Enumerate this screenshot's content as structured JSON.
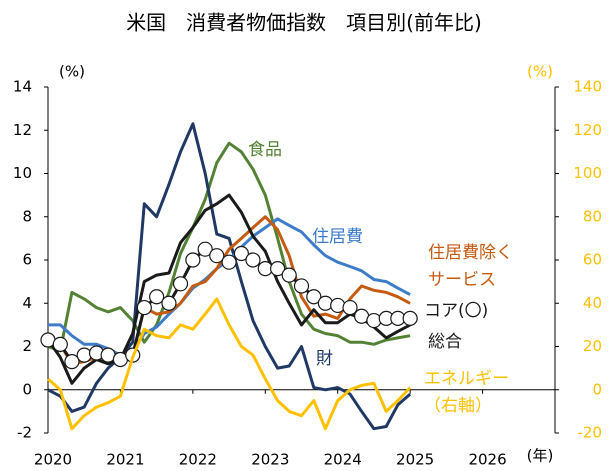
{
  "chart_data": {
    "type": "line",
    "title": "米国　消費者物価指数　項目別(前年比)",
    "y_unit": "(%)",
    "y2_unit": "(%)",
    "x_unit": "(年)",
    "annotation": "（右軸）",
    "xlim": [
      2020,
      2027
    ],
    "xticks": [
      2020,
      2021,
      2022,
      2023,
      2024,
      2025,
      2026
    ],
    "ylim": [
      -2,
      14
    ],
    "yticks": [
      -2,
      0,
      2,
      4,
      6,
      8,
      10,
      12,
      14
    ],
    "y2lim": [
      -20,
      140
    ],
    "y2ticks": [
      -20,
      0,
      20,
      40,
      60,
      80,
      100,
      120,
      140
    ],
    "y2_color": "#FFC000",
    "x": [
      2020.0,
      2020.17,
      2020.33,
      2020.5,
      2020.67,
      2020.83,
      2021.0,
      2021.17,
      2021.33,
      2021.5,
      2021.67,
      2021.83,
      2022.0,
      2022.17,
      2022.33,
      2022.5,
      2022.67,
      2022.83,
      2023.0,
      2023.17,
      2023.33,
      2023.5,
      2023.67,
      2023.83,
      2024.0,
      2024.17,
      2024.33,
      2024.5,
      2024.67,
      2024.83,
      2025.0
    ],
    "series": [
      {
        "name": "食品",
        "color": "#548235",
        "values": [
          2.0,
          1.8,
          4.5,
          4.2,
          3.8,
          3.6,
          3.8,
          3.2,
          2.2,
          3.0,
          4.5,
          6.3,
          7.5,
          8.8,
          10.5,
          11.4,
          11.0,
          10.2,
          9.0,
          7.0,
          5.0,
          3.5,
          2.8,
          2.6,
          2.5,
          2.2,
          2.2,
          2.1,
          2.3,
          2.4,
          2.5
        ]
      },
      {
        "name": "財",
        "color": "#203864",
        "values": [
          0.0,
          -0.3,
          -1.0,
          -0.8,
          0.3,
          1.0,
          1.5,
          2.2,
          8.6,
          8.0,
          9.5,
          11.0,
          12.3,
          10.0,
          7.2,
          7.0,
          5.0,
          3.2,
          2.0,
          1.0,
          1.1,
          2.0,
          0.1,
          0.0,
          0.1,
          -0.2,
          -1.0,
          -1.8,
          -1.7,
          -0.7,
          -0.2
        ]
      },
      {
        "name": "住居費",
        "color": "#3D7CC9",
        "values": [
          3.0,
          3.0,
          2.5,
          2.1,
          2.1,
          1.9,
          1.6,
          1.8,
          2.6,
          2.9,
          3.5,
          4.0,
          4.7,
          5.1,
          5.6,
          6.0,
          6.6,
          7.1,
          7.5,
          7.9,
          7.6,
          7.3,
          6.7,
          6.2,
          5.9,
          5.7,
          5.5,
          5.1,
          5.0,
          4.7,
          4.4
        ]
      },
      {
        "name": "住居費除くサービス",
        "color": "#C55A11",
        "values": [
          2.2,
          2.1,
          1.2,
          1.3,
          1.5,
          1.4,
          1.5,
          1.6,
          3.8,
          3.5,
          3.6,
          4.0,
          4.8,
          5.0,
          5.6,
          6.5,
          7.0,
          7.5,
          8.0,
          7.4,
          6.2,
          4.3,
          3.4,
          3.5,
          3.3,
          4.2,
          4.8,
          4.6,
          4.5,
          4.3,
          4.0
        ]
      },
      {
        "name": "総合",
        "color": "#1a1a1a",
        "values": [
          2.3,
          1.5,
          0.3,
          1.0,
          1.4,
          1.2,
          1.4,
          2.6,
          5.0,
          5.3,
          5.4,
          6.8,
          7.5,
          8.3,
          8.6,
          9.0,
          8.2,
          7.1,
          6.4,
          5.0,
          4.0,
          3.0,
          3.7,
          3.1,
          3.1,
          3.5,
          3.3,
          2.9,
          2.4,
          2.7,
          3.0
        ]
      },
      {
        "name": "コア(〇)",
        "color": "#1a1a1a",
        "marker": "circle",
        "values": [
          2.3,
          2.1,
          1.3,
          1.6,
          1.7,
          1.6,
          1.4,
          1.6,
          3.8,
          4.3,
          4.0,
          4.9,
          6.0,
          6.5,
          6.2,
          5.9,
          6.3,
          6.0,
          5.6,
          5.6,
          5.3,
          4.8,
          4.3,
          4.0,
          3.9,
          3.8,
          3.4,
          3.2,
          3.3,
          3.3,
          3.3
        ]
      },
      {
        "name": "エネルギー（右軸）",
        "color": "#FFC000",
        "axis": "y2",
        "values": [
          5,
          0,
          -18,
          -12,
          -8,
          -6,
          -3,
          15,
          28,
          25,
          24,
          30,
          28,
          35,
          42,
          30,
          20,
          16,
          5,
          -5,
          -10,
          -12,
          -5,
          -18,
          -5,
          0,
          2,
          3,
          -10,
          -5,
          1
        ]
      }
    ]
  }
}
